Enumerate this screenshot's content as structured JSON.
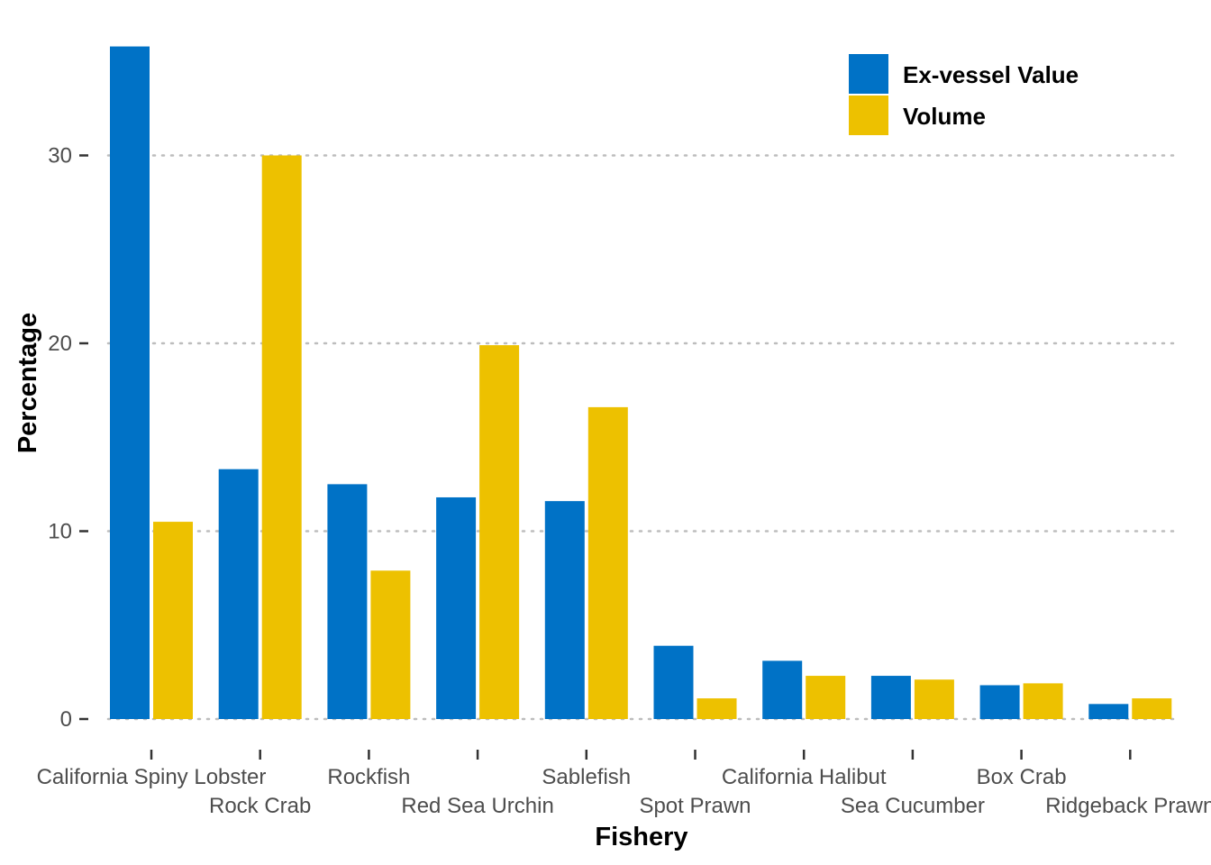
{
  "chart_data": {
    "type": "bar",
    "title": "",
    "xlabel": "Fishery",
    "ylabel": "Percentage",
    "ylim": [
      0,
      36
    ],
    "yticks": [
      0,
      10,
      20,
      30
    ],
    "grid": "horizontal-dotted",
    "legend_position": "top-right",
    "categories": [
      "California Spiny Lobster",
      "Rock Crab",
      "Rockfish",
      "Red Sea Urchin",
      "Sablefish",
      "Spot Prawn",
      "California Halibut",
      "Sea Cucumber",
      "Box Crab",
      "Ridgeback Prawn"
    ],
    "series": [
      {
        "name": "Ex-vessel Value",
        "color": "#0072C6",
        "values": [
          35.8,
          13.3,
          12.5,
          11.8,
          11.6,
          3.9,
          3.1,
          2.3,
          1.8,
          0.8
        ]
      },
      {
        "name": "Volume",
        "color": "#EDC100",
        "values": [
          10.5,
          30.0,
          7.9,
          19.9,
          16.6,
          1.1,
          2.3,
          2.1,
          1.9,
          1.1
        ]
      }
    ]
  }
}
